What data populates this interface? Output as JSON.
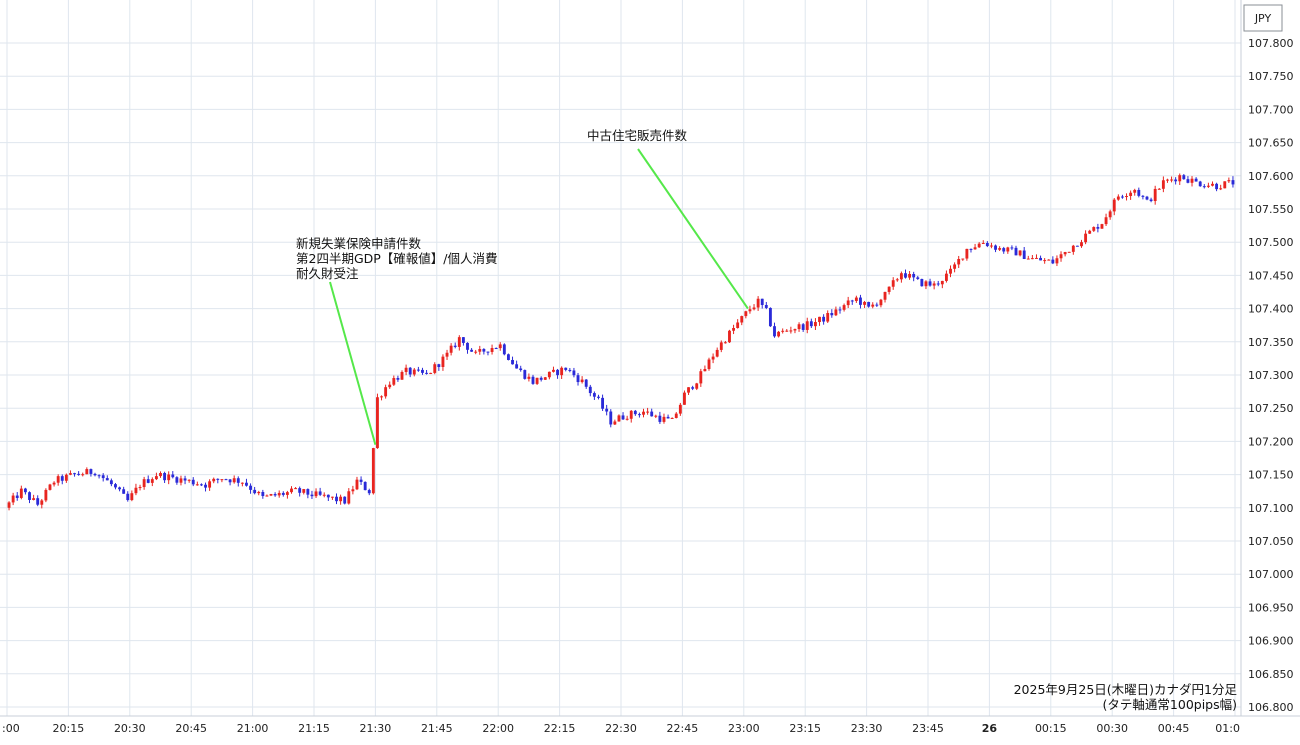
{
  "chart_data": {
    "type": "candlestick",
    "currency_label": "JPY",
    "ylim": [
      106.8,
      107.8
    ],
    "y_ticks": [
      "107.800",
      "107.750",
      "107.700",
      "107.650",
      "107.600",
      "107.550",
      "107.500",
      "107.450",
      "107.400",
      "107.350",
      "107.300",
      "107.250",
      "107.200",
      "107.150",
      "107.100",
      "107.050",
      "107.000",
      "106.950",
      "106.900",
      "106.850",
      "106.800"
    ],
    "x_ticks": [
      {
        "label": ":00",
        "t": 0
      },
      {
        "label": "20:15",
        "t": 15
      },
      {
        "label": "20:30",
        "t": 30
      },
      {
        "label": "20:45",
        "t": 45
      },
      {
        "label": "21:00",
        "t": 60
      },
      {
        "label": "21:15",
        "t": 75
      },
      {
        "label": "21:30",
        "t": 90
      },
      {
        "label": "21:45",
        "t": 105
      },
      {
        "label": "22:00",
        "t": 120
      },
      {
        "label": "22:15",
        "t": 135
      },
      {
        "label": "22:30",
        "t": 150
      },
      {
        "label": "22:45",
        "t": 165
      },
      {
        "label": "23:00",
        "t": 180
      },
      {
        "label": "23:15",
        "t": 195
      },
      {
        "label": "23:30",
        "t": 210
      },
      {
        "label": "23:45",
        "t": 225
      },
      {
        "label": "26",
        "t": 240
      },
      {
        "label": "00:15",
        "t": 255
      },
      {
        "label": "00:30",
        "t": 270
      },
      {
        "label": "00:45",
        "t": 285
      },
      {
        "label": "01:0",
        "t": 300
      }
    ],
    "price_path": [
      [
        0,
        107.1
      ],
      [
        4,
        107.125
      ],
      [
        8,
        107.105
      ],
      [
        12,
        107.14
      ],
      [
        17,
        107.15
      ],
      [
        22,
        107.155
      ],
      [
        26,
        107.135
      ],
      [
        30,
        107.11
      ],
      [
        33,
        107.135
      ],
      [
        37,
        107.15
      ],
      [
        41,
        107.145
      ],
      [
        45,
        107.14
      ],
      [
        49,
        107.135
      ],
      [
        53,
        107.145
      ],
      [
        58,
        107.14
      ],
      [
        63,
        107.115
      ],
      [
        67,
        107.12
      ],
      [
        71,
        107.125
      ],
      [
        75,
        107.12
      ],
      [
        79,
        107.115
      ],
      [
        83,
        107.11
      ],
      [
        86,
        107.14
      ],
      [
        89,
        107.125
      ],
      [
        90,
        107.19
      ],
      [
        91,
        107.265
      ],
      [
        94,
        107.29
      ],
      [
        98,
        107.305
      ],
      [
        103,
        107.3
      ],
      [
        108,
        107.33
      ],
      [
        111,
        107.355
      ],
      [
        115,
        107.33
      ],
      [
        118,
        107.34
      ],
      [
        121,
        107.345
      ],
      [
        125,
        107.31
      ],
      [
        129,
        107.29
      ],
      [
        133,
        107.3
      ],
      [
        137,
        107.31
      ],
      [
        141,
        107.29
      ],
      [
        145,
        107.26
      ],
      [
        148,
        107.23
      ],
      [
        152,
        107.24
      ],
      [
        156,
        107.245
      ],
      [
        160,
        107.235
      ],
      [
        163,
        107.23
      ],
      [
        166,
        107.27
      ],
      [
        170,
        107.3
      ],
      [
        174,
        107.34
      ],
      [
        178,
        107.37
      ],
      [
        182,
        107.4
      ],
      [
        184,
        107.41
      ],
      [
        186,
        107.395
      ],
      [
        188,
        107.36
      ],
      [
        192,
        107.37
      ],
      [
        196,
        107.375
      ],
      [
        200,
        107.385
      ],
      [
        204,
        107.4
      ],
      [
        208,
        107.415
      ],
      [
        211,
        107.4
      ],
      [
        215,
        107.42
      ],
      [
        219,
        107.455
      ],
      [
        223,
        107.44
      ],
      [
        227,
        107.435
      ],
      [
        231,
        107.455
      ],
      [
        235,
        107.49
      ],
      [
        239,
        107.5
      ],
      [
        243,
        107.49
      ],
      [
        247,
        107.485
      ],
      [
        251,
        107.475
      ],
      [
        256,
        107.47
      ],
      [
        260,
        107.49
      ],
      [
        264,
        107.51
      ],
      [
        268,
        107.53
      ],
      [
        272,
        107.57
      ],
      [
        276,
        107.58
      ],
      [
        279,
        107.56
      ],
      [
        283,
        107.59
      ],
      [
        287,
        107.6
      ],
      [
        291,
        107.59
      ],
      [
        296,
        107.585
      ],
      [
        300,
        107.59
      ]
    ],
    "annotations": [
      {
        "lines": [
          "新規失業保険申請件数",
          "第2四半期GDP【確報値】/個人消費",
          "耐久財受注"
        ],
        "at_t": 90,
        "at_price": 107.195
      },
      {
        "lines": [
          "中古住宅販売件数"
        ],
        "at_t": 181,
        "at_price": 107.4
      }
    ],
    "footer": [
      "2025年9月25日(木曜日)カナダ円1分足",
      "(タテ軸通常100pips幅)"
    ],
    "colors": {
      "up": "#e8241f",
      "down": "#2a2ad8",
      "annotation_line": "#55e84a",
      "grid": "#dfe6ee"
    }
  }
}
